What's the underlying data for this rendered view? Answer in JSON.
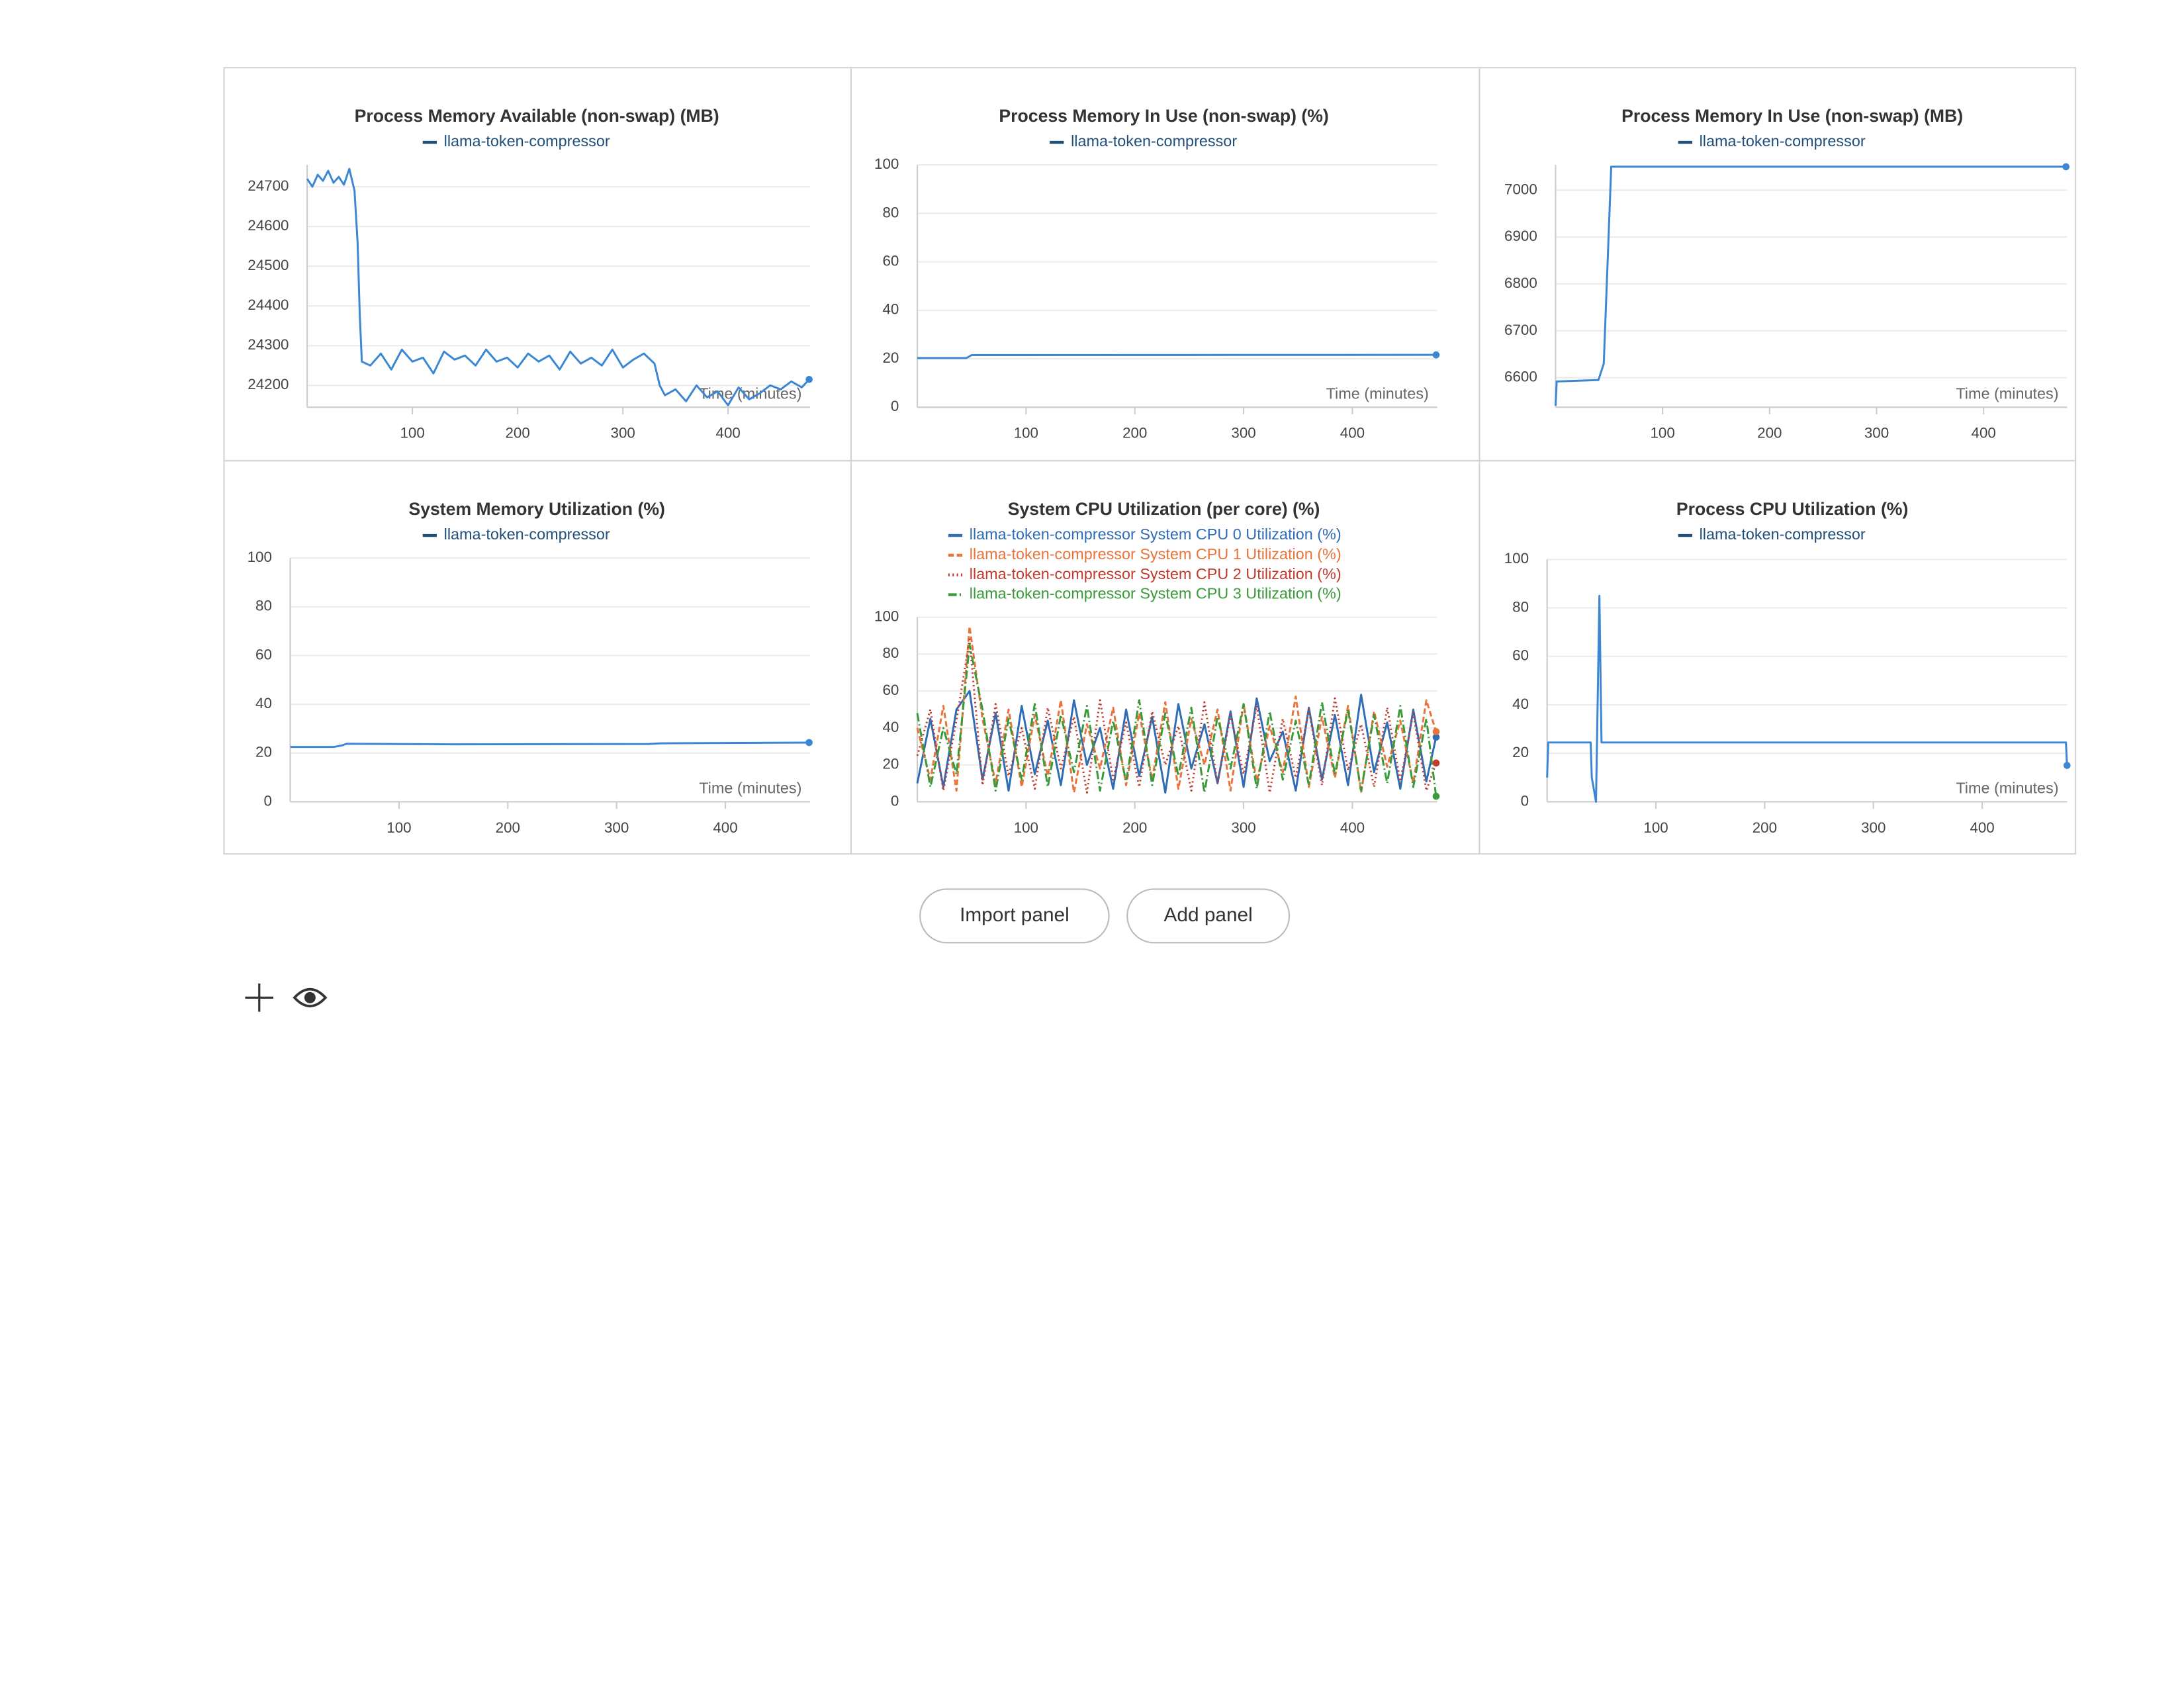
{
  "chart_data": [
    {
      "type": "line",
      "title": "Process Memory Available (non-swap) (MB)",
      "x_label": "Time (minutes)",
      "xlim": [
        0,
        478
      ],
      "xticks": [
        100,
        200,
        300,
        400
      ],
      "ylim": [
        24145,
        24755
      ],
      "yticks": [
        24200,
        24300,
        24400,
        24500,
        24600,
        24700
      ],
      "grid": true,
      "x": [
        0,
        5,
        10,
        15,
        20,
        25,
        30,
        35,
        40,
        45,
        48,
        50,
        52,
        60,
        70,
        80,
        90,
        100,
        110,
        120,
        130,
        140,
        150,
        160,
        170,
        180,
        190,
        200,
        210,
        220,
        230,
        240,
        250,
        260,
        270,
        280,
        290,
        300,
        310,
        320,
        330,
        335,
        340,
        350,
        360,
        370,
        380,
        390,
        400,
        410,
        420,
        430,
        440,
        450,
        460,
        470,
        477
      ],
      "series": [
        {
          "name": "llama-token-compressor",
          "color": "#3b87d4",
          "values": [
            24720,
            24700,
            24730,
            24715,
            24740,
            24710,
            24725,
            24705,
            24745,
            24690,
            24560,
            24380,
            24260,
            24250,
            24280,
            24240,
            24290,
            24260,
            24270,
            24230,
            24285,
            24265,
            24275,
            24250,
            24290,
            24260,
            24270,
            24245,
            24280,
            24260,
            24275,
            24240,
            24285,
            24255,
            24270,
            24250,
            24290,
            24245,
            24265,
            24280,
            24255,
            24200,
            24175,
            24190,
            24160,
            24200,
            24170,
            24185,
            24150,
            24195,
            24165,
            24180,
            24200,
            24190,
            24210,
            24195,
            24215
          ]
        }
      ]
    },
    {
      "type": "line",
      "title": "Process Memory In Use (non-swap) (%)",
      "x_label": "Time (minutes)",
      "xlim": [
        0,
        478
      ],
      "xticks": [
        100,
        200,
        300,
        400
      ],
      "ylim": [
        0,
        100
      ],
      "yticks": [
        0,
        20,
        40,
        60,
        80,
        100
      ],
      "grid": true,
      "x": [
        0,
        45,
        50,
        477
      ],
      "series": [
        {
          "name": "llama-token-compressor",
          "color": "#3b87d4",
          "values": [
            20.3,
            20.3,
            21.5,
            21.6
          ]
        }
      ]
    },
    {
      "type": "line",
      "title": "Process Memory In Use (non-swap) (MB)",
      "x_label": "Time (minutes)",
      "xlim": [
        0,
        478
      ],
      "xticks": [
        100,
        200,
        300,
        400
      ],
      "ylim": [
        6537,
        7054
      ],
      "yticks": [
        6600,
        6700,
        6800,
        6900,
        7000
      ],
      "grid": true,
      "x": [
        0,
        1,
        40,
        45,
        52,
        477
      ],
      "series": [
        {
          "name": "llama-token-compressor",
          "color": "#3b87d4",
          "values": [
            6540,
            6592,
            6595,
            6630,
            7050,
            7050
          ]
        }
      ]
    },
    {
      "type": "line",
      "title": "System Memory Utilization (%)",
      "x_label": "Time (minutes)",
      "xlim": [
        0,
        478
      ],
      "xticks": [
        100,
        200,
        300,
        400
      ],
      "ylim": [
        0,
        100
      ],
      "yticks": [
        0,
        20,
        40,
        60,
        80,
        100
      ],
      "grid": true,
      "x": [
        0,
        40,
        48,
        52,
        150,
        330,
        340,
        477
      ],
      "series": [
        {
          "name": "llama-token-compressor",
          "color": "#3b87d4",
          "values": [
            22.5,
            22.5,
            23.2,
            23.8,
            23.6,
            23.7,
            24.0,
            24.3
          ]
        }
      ]
    },
    {
      "type": "line",
      "title": "System CPU Utilization (per core) (%)",
      "xlim": [
        0,
        478
      ],
      "xticks": [
        100,
        200,
        300,
        400
      ],
      "ylim": [
        0,
        100
      ],
      "yticks": [
        0,
        20,
        40,
        60,
        80,
        100
      ],
      "grid": true,
      "x": [
        0,
        12,
        24,
        36,
        48,
        60,
        72,
        84,
        96,
        108,
        120,
        132,
        144,
        156,
        168,
        180,
        192,
        204,
        216,
        228,
        240,
        252,
        264,
        276,
        288,
        300,
        312,
        324,
        336,
        348,
        360,
        372,
        384,
        396,
        408,
        420,
        432,
        444,
        456,
        468,
        477
      ],
      "series": [
        {
          "name": "llama-token-compressor System CPU 0 Utilization (%)",
          "color": "#2f6db5",
          "dash": "",
          "values": [
            10,
            45,
            8,
            50,
            60,
            12,
            48,
            6,
            52,
            15,
            44,
            9,
            55,
            20,
            40,
            7,
            50,
            14,
            46,
            5,
            53,
            18,
            42,
            10,
            49,
            8,
            56,
            22,
            38,
            6,
            51,
            12,
            47,
            9,
            58,
            16,
            43,
            7,
            50,
            11,
            35
          ]
        },
        {
          "name": "llama-token-compressor System CPU 1 Utilization (%)",
          "color": "#e8743b",
          "dash": "4 2",
          "values": [
            40,
            12,
            52,
            6,
            95,
            45,
            10,
            50,
            8,
            47,
            14,
            55,
            5,
            42,
            18,
            51,
            9,
            48,
            12,
            54,
            7,
            45,
            20,
            50,
            6,
            53,
            11,
            41,
            16,
            57,
            8,
            46,
            13,
            52,
            5,
            49,
            19,
            44,
            10,
            55,
            38
          ]
        },
        {
          "name": "llama-token-compressor System CPU 2 Utilization (%)",
          "color": "#c23b2e",
          "dash": "1 2",
          "values": [
            25,
            50,
            6,
            44,
            88,
            9,
            53,
            14,
            40,
            7,
            51,
            18,
            46,
            5,
            55,
            12,
            43,
            8,
            49,
            20,
            41,
            6,
            54,
            10,
            47,
            15,
            52,
            5,
            45,
            13,
            50,
            9,
            56,
            17,
            42,
            8,
            51,
            11,
            48,
            6,
            21
          ]
        },
        {
          "name": "llama-token-compressor System CPU 3 Utilization (%)",
          "color": "#3a9a3a",
          "dash": "6 2 1 2",
          "values": [
            48,
            8,
            40,
            15,
            85,
            50,
            6,
            45,
            12,
            53,
            8,
            47,
            16,
            52,
            6,
            44,
            11,
            55,
            9,
            48,
            14,
            51,
            5,
            46,
            18,
            53,
            7,
            49,
            12,
            44,
            9,
            54,
            15,
            50,
            6,
            47,
            10,
            52,
            8,
            45,
            3
          ]
        }
      ]
    },
    {
      "type": "line",
      "title": "Process CPU Utilization (%)",
      "x_label": "Time (minutes)",
      "xlim": [
        0,
        478
      ],
      "xticks": [
        100,
        200,
        300,
        400
      ],
      "ylim": [
        0,
        100
      ],
      "yticks": [
        0,
        20,
        40,
        60,
        80,
        100
      ],
      "grid": true,
      "x": [
        0,
        1,
        40,
        41,
        45,
        48,
        50,
        477,
        478
      ],
      "series": [
        {
          "name": "llama-token-compressor",
          "color": "#3b87d4",
          "values": [
            10,
            24.5,
            24.5,
            10,
            0,
            85,
            24.5,
            24.5,
            15
          ]
        }
      ]
    }
  ],
  "buttons": [
    "Import panel",
    "Add panel"
  ]
}
